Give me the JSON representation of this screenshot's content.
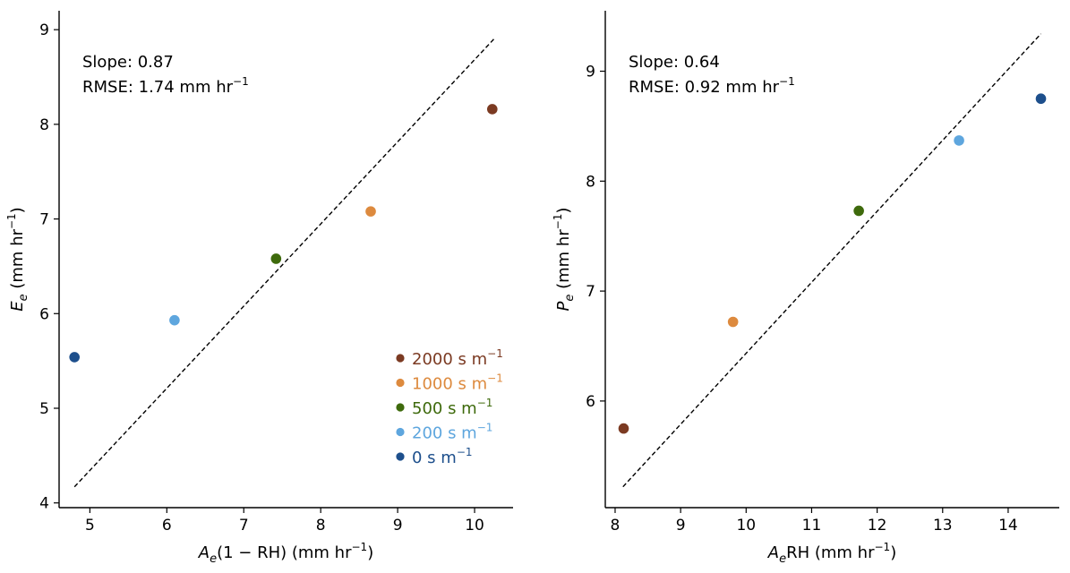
{
  "chart_data": [
    {
      "type": "scatter",
      "xlabel": "A_e(1 − RH) (mm hr⁻¹)",
      "xlabel_parts": {
        "base": "A",
        "sub": "e",
        "rest": "(1 − RH) (mm hr",
        "sup": "−1",
        "close": ")"
      },
      "ylabel": "E_e (mm hr⁻¹)",
      "ylabel_parts": {
        "base": "E",
        "sub": "e",
        "rest": " (mm hr",
        "sup": "−1",
        "close": ")"
      },
      "xlim": [
        4.6,
        10.5
      ],
      "ylim": [
        3.95,
        9.2
      ],
      "xticks": [
        5,
        6,
        7,
        8,
        9,
        10
      ],
      "yticks": [
        4,
        5,
        6,
        7,
        8,
        9
      ],
      "annotations": [
        "Slope: 0.87",
        "RMSE: 1.74 mm hr⁻¹"
      ],
      "annotation_parts": [
        {
          "text": "Slope: 0.87"
        },
        {
          "text": "RMSE: 1.74 mm hr",
          "sup": "−1"
        }
      ],
      "reference_line": {
        "style": "dashed",
        "x": [
          4.8,
          10.25
        ],
        "y": [
          4.17,
          8.9
        ]
      },
      "series": [
        {
          "name": "2000 s m⁻¹",
          "label_parts": {
            "text": "2000 s m",
            "sup": "−1"
          },
          "color": "#7b3a22",
          "x": 10.23,
          "y": 8.16
        },
        {
          "name": "1000 s m⁻¹",
          "label_parts": {
            "text": "1000 s m",
            "sup": "−1"
          },
          "color": "#dd8a3e",
          "x": 8.65,
          "y": 7.08
        },
        {
          "name": "500 s m⁻¹",
          "label_parts": {
            "text": "500 s m",
            "sup": "−1"
          },
          "color": "#3e6a0c",
          "x": 7.42,
          "y": 6.58
        },
        {
          "name": "200 s m⁻¹",
          "label_parts": {
            "text": "200 s m",
            "sup": "−1"
          },
          "color": "#5ea6de",
          "x": 6.1,
          "y": 5.93
        },
        {
          "name": "0 s m⁻¹",
          "label_parts": {
            "text": "0 s m",
            "sup": "−1"
          },
          "color": "#1d4f8c",
          "x": 4.8,
          "y": 5.54
        }
      ],
      "legend": {
        "placement": "lower-right"
      }
    },
    {
      "type": "scatter",
      "xlabel": "A_eRH (mm hr⁻¹)",
      "xlabel_parts": {
        "base": "A",
        "sub": "e",
        "rest": "RH (mm hr",
        "sup": "−1",
        "close": ")"
      },
      "ylabel": "P_e (mm hr⁻¹)",
      "ylabel_parts": {
        "base": "P",
        "sub": "e",
        "rest": " (mm hr",
        "sup": "−1",
        "close": ")"
      },
      "xlim": [
        7.85,
        14.78
      ],
      "ylim": [
        5.03,
        9.55
      ],
      "xticks": [
        8,
        9,
        10,
        11,
        12,
        13,
        14
      ],
      "yticks": [
        6,
        7,
        8,
        9
      ],
      "annotations": [
        "Slope: 0.64",
        "RMSE: 0.92 mm hr⁻¹"
      ],
      "annotation_parts": [
        {
          "text": "Slope: 0.64"
        },
        {
          "text": "RMSE: 0.92 mm hr",
          "sup": "−1"
        }
      ],
      "reference_line": {
        "style": "dashed",
        "x": [
          8.12,
          14.5
        ],
        "y": [
          5.22,
          9.34
        ]
      },
      "series": [
        {
          "name": "2000 s m⁻¹",
          "color": "#7b3a22",
          "x": 8.13,
          "y": 5.75
        },
        {
          "name": "1000 s m⁻¹",
          "color": "#dd8a3e",
          "x": 9.8,
          "y": 6.72
        },
        {
          "name": "500 s m⁻¹",
          "color": "#3e6a0c",
          "x": 11.72,
          "y": 7.73
        },
        {
          "name": "200 s m⁻¹",
          "color": "#5ea6de",
          "x": 13.25,
          "y": 8.37
        },
        {
          "name": "0 s m⁻¹",
          "color": "#1d4f8c",
          "x": 14.5,
          "y": 8.75
        }
      ]
    }
  ]
}
